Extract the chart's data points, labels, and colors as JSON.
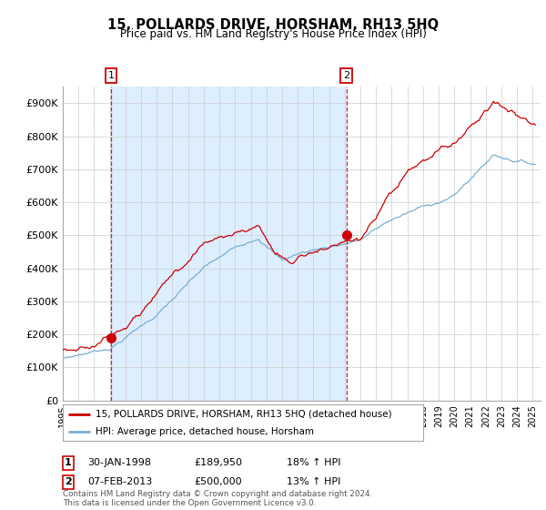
{
  "title": "15, POLLARDS DRIVE, HORSHAM, RH13 5HQ",
  "subtitle": "Price paid vs. HM Land Registry's House Price Index (HPI)",
  "ylim": [
    0,
    950000
  ],
  "yticks": [
    0,
    100000,
    200000,
    300000,
    400000,
    500000,
    600000,
    700000,
    800000,
    900000
  ],
  "ytick_labels": [
    "£0",
    "£100K",
    "£200K",
    "£300K",
    "£400K",
    "£500K",
    "£600K",
    "£700K",
    "£800K",
    "£900K"
  ],
  "sale1_year": 1998.08,
  "sale1_price": 189950,
  "sale2_year": 2013.1,
  "sale2_price": 500000,
  "hpi_color": "#7aaed6",
  "price_color": "#cc0000",
  "vline_color": "#cc0000",
  "shade_color": "#ddeeff",
  "grid_color": "#cccccc",
  "background_color": "#ffffff",
  "legend1_text": "15, POLLARDS DRIVE, HORSHAM, RH13 5HQ (detached house)",
  "legend2_text": "HPI: Average price, detached house, Horsham",
  "row1_date": "30-JAN-1998",
  "row1_price": "£189,950",
  "row1_pct": "18% ↑ HPI",
  "row2_date": "07-FEB-2013",
  "row2_price": "£500,000",
  "row2_pct": "13% ↑ HPI",
  "footer": "Contains HM Land Registry data © Crown copyright and database right 2024.\nThis data is licensed under the Open Government Licence v3.0."
}
